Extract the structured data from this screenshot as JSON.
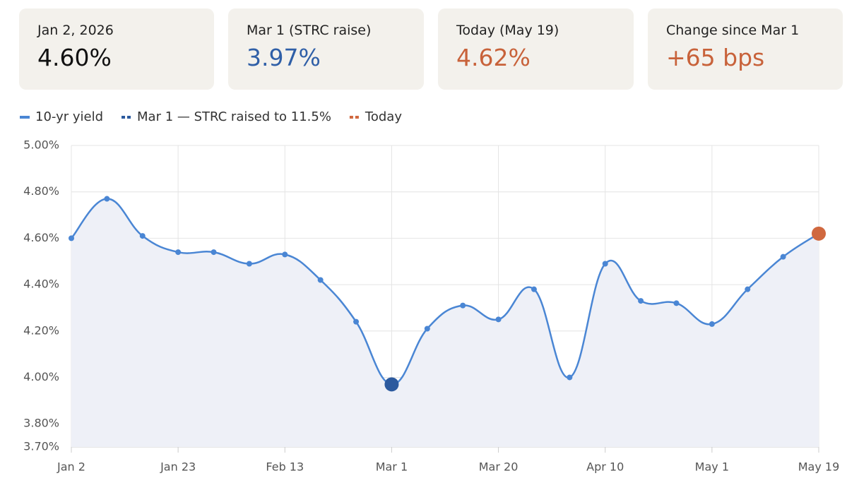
{
  "cards": [
    {
      "label": "Jan 2, 2026",
      "value": "4.60%",
      "color": "#111111"
    },
    {
      "label": "Mar 1 (STRC raise)",
      "value": "3.97%",
      "color": "#2f5fa7"
    },
    {
      "label": "Today (May 19)",
      "value": "4.62%",
      "color": "#c8623a"
    },
    {
      "label": "Change since Mar 1",
      "value": "+65 bps",
      "color": "#c8623a"
    }
  ],
  "chart_data": {
    "type": "line",
    "categories": [
      "Jan 2",
      null,
      null,
      "Jan 23",
      null,
      null,
      "Feb 13",
      null,
      null,
      "Mar 1",
      null,
      null,
      "Mar 20",
      null,
      null,
      "Apr 10",
      null,
      null,
      "May 1",
      null,
      null,
      "May 19"
    ],
    "series": [
      {
        "name": "10-yr yield",
        "color": "#4a86d4",
        "values": [
          4.6,
          4.77,
          4.61,
          4.54,
          4.54,
          4.49,
          4.53,
          4.42,
          4.24,
          3.97,
          4.21,
          4.31,
          4.25,
          4.38,
          4.0,
          4.49,
          4.33,
          4.32,
          4.23,
          4.38,
          4.52,
          4.62
        ]
      },
      {
        "name": "Mar 1 — STRC raised to 11.5%",
        "color": "#2c5a9e",
        "values": [
          null,
          null,
          null,
          null,
          null,
          null,
          null,
          null,
          null,
          3.97,
          null,
          null,
          null,
          null,
          null,
          null,
          null,
          null,
          null,
          null,
          null,
          null
        ]
      },
      {
        "name": "Today",
        "color": "#d0683f",
        "values": [
          null,
          null,
          null,
          null,
          null,
          null,
          null,
          null,
          null,
          null,
          null,
          null,
          null,
          null,
          null,
          null,
          null,
          null,
          null,
          null,
          null,
          4.62
        ]
      }
    ],
    "ylim": [
      3.7,
      5.0
    ],
    "yticks": [
      {
        "value": 3.7,
        "label": "3.70%"
      },
      {
        "value": 3.8,
        "label": "3.80%"
      },
      {
        "value": 4.0,
        "label": "4.00%"
      },
      {
        "value": 4.2,
        "label": "4.20%"
      },
      {
        "value": 4.4,
        "label": "4.40%"
      },
      {
        "value": 4.6,
        "label": "4.60%"
      },
      {
        "value": 4.8,
        "label": "4.80%"
      },
      {
        "value": 5.0,
        "label": "5.00%"
      }
    ],
    "grid": true
  }
}
